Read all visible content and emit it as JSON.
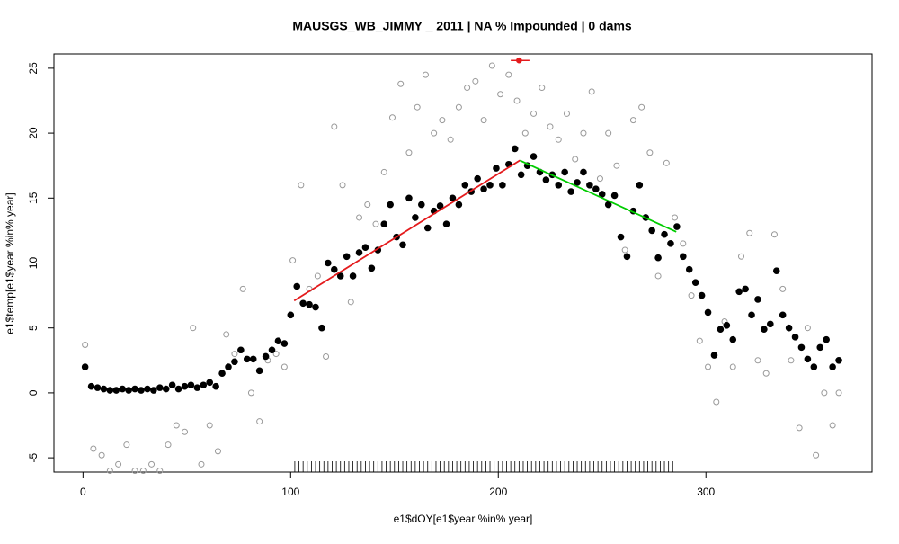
{
  "chart_data": {
    "type": "scatter",
    "title": "MAUSGS_WB_JIMMY _ 2011   |   NA  % Impounded |  0  dams",
    "x_label": "e1$dOY[e1$year %in% year]",
    "y_label": "e1$temp[e1$year %in% year]",
    "xlim": [
      -14,
      380
    ],
    "ylim": [
      -6.1,
      26.1
    ],
    "xticks": [
      0,
      100,
      200,
      300
    ],
    "yticks": [
      -5,
      0,
      5,
      10,
      15,
      20,
      25
    ],
    "series": [
      {
        "color": "#999999",
        "filled": false,
        "x": [
          1,
          5,
          9,
          13,
          17,
          21,
          25,
          29,
          33,
          37,
          41,
          45,
          49,
          53,
          57,
          61,
          65,
          69,
          73,
          77,
          81,
          85,
          89,
          93,
          97,
          101,
          105,
          109,
          113,
          117,
          121,
          125,
          129,
          133,
          137,
          141,
          145,
          149,
          153,
          157,
          161,
          165,
          169,
          173,
          177,
          181,
          185,
          189,
          193,
          197,
          201,
          205,
          209,
          213,
          217,
          221,
          225,
          229,
          233,
          237,
          241,
          245,
          249,
          253,
          257,
          261,
          265,
          269,
          273,
          277,
          281,
          285,
          289,
          293,
          297,
          301,
          305,
          309,
          313,
          317,
          321,
          325,
          329,
          333,
          337,
          341,
          345,
          349,
          353,
          357,
          361,
          364
        ],
        "values": [
          3.7,
          -4.3,
          -4.8,
          -6.0,
          -5.5,
          -4.0,
          -6.0,
          -6.0,
          -5.5,
          -6.0,
          -4.0,
          -2.5,
          -3.0,
          5.0,
          -5.5,
          -2.5,
          -4.5,
          4.5,
          3.0,
          8.0,
          0.0,
          -2.2,
          2.5,
          3.0,
          2.0,
          10.2,
          16.0,
          8.0,
          9.0,
          2.8,
          20.5,
          16.0,
          7.0,
          13.5,
          14.5,
          13.0,
          17.0,
          21.2,
          23.8,
          18.5,
          22.0,
          24.5,
          20.0,
          21.0,
          19.5,
          22.0,
          23.5,
          24.0,
          21.0,
          25.2,
          23.0,
          24.5,
          22.5,
          20.0,
          21.5,
          23.5,
          20.5,
          19.5,
          21.5,
          18.0,
          20.0,
          23.2,
          16.5,
          20.0,
          17.5,
          11.0,
          21.0,
          22.0,
          18.5,
          9.0,
          17.7,
          13.5,
          11.5,
          7.5,
          4.0,
          2.0,
          -0.7,
          5.5,
          2.0,
          10.5,
          12.3,
          2.5,
          1.5,
          12.2,
          8.0,
          2.5,
          -2.7,
          5.0,
          -4.8,
          0.0,
          -2.5,
          0.0
        ]
      },
      {
        "color": "#000000",
        "filled": true,
        "x": [
          1,
          4,
          7,
          10,
          13,
          16,
          19,
          22,
          25,
          28,
          31,
          34,
          37,
          40,
          43,
          46,
          49,
          52,
          55,
          58,
          61,
          64,
          67,
          70,
          73,
          76,
          79,
          82,
          85,
          88,
          91,
          94,
          97,
          100,
          103,
          106,
          109,
          112,
          115,
          118,
          121,
          124,
          127,
          130,
          133,
          136,
          139,
          142,
          145,
          148,
          151,
          154,
          157,
          160,
          163,
          166,
          169,
          172,
          175,
          178,
          181,
          184,
          187,
          190,
          193,
          196,
          199,
          202,
          205,
          208,
          211,
          214,
          217,
          220,
          223,
          226,
          229,
          232,
          235,
          238,
          241,
          244,
          247,
          250,
          253,
          256,
          259,
          262,
          265,
          268,
          271,
          274,
          277,
          280,
          283,
          286,
          289,
          292,
          295,
          298,
          301,
          304,
          307,
          310,
          313,
          316,
          319,
          322,
          325,
          328,
          331,
          334,
          337,
          340,
          343,
          346,
          349,
          352,
          355,
          358,
          361,
          364
        ],
        "values": [
          2.0,
          0.5,
          0.4,
          0.3,
          0.2,
          0.2,
          0.3,
          0.2,
          0.3,
          0.2,
          0.3,
          0.2,
          0.4,
          0.3,
          0.6,
          0.3,
          0.5,
          0.6,
          0.4,
          0.6,
          0.8,
          0.5,
          1.5,
          2.0,
          2.4,
          3.3,
          2.6,
          2.6,
          1.7,
          2.8,
          3.3,
          4.0,
          3.8,
          6.0,
          8.2,
          6.9,
          6.8,
          6.6,
          5.0,
          10.0,
          9.5,
          9.0,
          10.5,
          9.0,
          10.8,
          11.2,
          9.6,
          11.0,
          13.0,
          14.5,
          12.0,
          11.4,
          15.0,
          13.5,
          14.5,
          12.7,
          14.0,
          14.4,
          13.0,
          15.0,
          14.5,
          16.0,
          15.5,
          16.5,
          15.7,
          16.0,
          17.3,
          16.0,
          17.6,
          18.8,
          16.8,
          17.5,
          18.2,
          17.0,
          16.4,
          16.8,
          16.0,
          17.0,
          15.5,
          16.2,
          17.0,
          16.0,
          15.7,
          15.3,
          14.5,
          15.2,
          12.0,
          10.5,
          14.0,
          16.0,
          13.5,
          12.5,
          10.4,
          12.2,
          11.5,
          12.8,
          10.5,
          9.5,
          8.5,
          7.5,
          6.2,
          2.9,
          4.9,
          5.2,
          4.1,
          7.8,
          8.0,
          6.0,
          7.2,
          4.9,
          5.3,
          9.4,
          6.0,
          5.0,
          4.3,
          3.5,
          2.6,
          2.0,
          3.5,
          4.1,
          2.0,
          2.5
        ]
      }
    ],
    "lines": [
      {
        "color": "#e41a1c",
        "x": [
          101.7,
          210.4
        ],
        "values": [
          7.1,
          17.9
        ]
      },
      {
        "color": "#00cc00",
        "x": [
          210.4,
          285.7
        ],
        "values": [
          17.9,
          12.4
        ]
      }
    ],
    "point": {
      "color": "#e41a1c",
      "x": 210,
      "value": 25.6,
      "xmin": 206,
      "xmax": 215
    },
    "rug": [
      102,
      104,
      106,
      108,
      110,
      112,
      114,
      116,
      118,
      120,
      122,
      124,
      126,
      128,
      130,
      132,
      134,
      136,
      138,
      140,
      142,
      144,
      146,
      148,
      150,
      152,
      154,
      156,
      158,
      160,
      162,
      164,
      166,
      168,
      170,
      172,
      174,
      176,
      178,
      180,
      182,
      184,
      186,
      188,
      190,
      192,
      194,
      196,
      198,
      200,
      202,
      204,
      206,
      208,
      210,
      212,
      214,
      216,
      218,
      220,
      222,
      224,
      226,
      228,
      230,
      232,
      234,
      236,
      238,
      240,
      242,
      244,
      246,
      248,
      250,
      252,
      254,
      256,
      258,
      260,
      262,
      264,
      266,
      268,
      270,
      272,
      274,
      276,
      278,
      280,
      282,
      284
    ]
  }
}
